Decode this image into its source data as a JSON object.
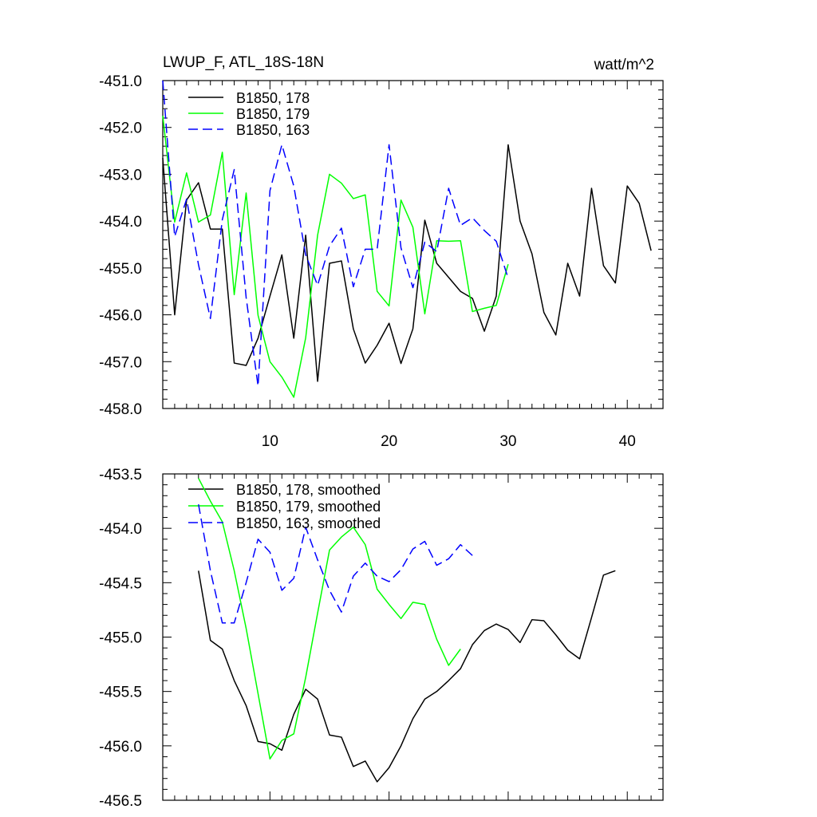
{
  "figure": {
    "title_left": "LWUP_F, ATL_18S-18N",
    "title_right": "watt/m^2"
  },
  "chart_data": [
    {
      "type": "line",
      "panel": "top",
      "x_axis": {
        "range": [
          1,
          43
        ],
        "major_ticks": [
          10,
          20,
          30,
          40
        ],
        "minor_step": 1
      },
      "y_axis": {
        "range": [
          -458.0,
          -451.0
        ],
        "major_ticks": [
          -451.0,
          -452.0,
          -453.0,
          -454.0,
          -455.0,
          -456.0,
          -457.0,
          -458.0
        ],
        "minor_step": 0.2,
        "tick_format": 1
      },
      "legend_position": "top-left",
      "series": [
        {
          "name": "B1850, 178",
          "color": "#000000",
          "dashed": false,
          "x_start": 1,
          "values": [
            -452.65,
            -456.0,
            -453.55,
            -453.18,
            -454.17,
            -454.17,
            -457.03,
            -457.08,
            -456.5,
            -455.6,
            -454.72,
            -456.5,
            -454.3,
            -457.42,
            -454.9,
            -454.85,
            -456.3,
            -457.03,
            -456.65,
            -456.18,
            -457.04,
            -456.3,
            -453.98,
            -454.9,
            -455.2,
            -455.5,
            -455.65,
            -456.35,
            -455.6,
            -452.37,
            -454.0,
            -454.7,
            -455.95,
            -456.43,
            -454.9,
            -455.6,
            -453.3,
            -454.95,
            -455.32,
            -453.25,
            -453.62,
            -454.63
          ]
        },
        {
          "name": "B1850, 179",
          "color": "#00ff00",
          "dashed": false,
          "x_start": 1,
          "values": [
            -451.75,
            -454.02,
            -452.97,
            -454.02,
            -453.87,
            -452.53,
            -455.57,
            -453.4,
            -456.01,
            -457.0,
            -457.33,
            -457.76,
            -456.49,
            -454.3,
            -453.0,
            -453.19,
            -453.52,
            -453.44,
            -455.5,
            -455.81,
            -453.55,
            -454.13,
            -455.98,
            -454.42,
            -454.43,
            -454.42,
            -455.93,
            -455.86,
            -455.8,
            -454.92
          ]
        },
        {
          "name": "B1850, 163",
          "color": "#0000ff",
          "dashed": true,
          "x_start": 1,
          "values": [
            -451.0,
            -454.33,
            -453.53,
            -454.93,
            -456.08,
            -453.97,
            -452.9,
            -455.63,
            -457.52,
            -453.35,
            -452.37,
            -453.25,
            -454.72,
            -455.37,
            -454.53,
            -454.15,
            -455.4,
            -454.6,
            -454.6,
            -452.37,
            -454.57,
            -455.42,
            -454.45,
            -454.65,
            -453.3,
            -454.09,
            -453.93,
            -454.2,
            -454.43,
            -455.22
          ]
        }
      ]
    },
    {
      "type": "line",
      "panel": "bottom",
      "x_axis": {
        "range": [
          1,
          43
        ],
        "major_ticks": [
          10,
          20,
          30,
          40
        ],
        "minor_step": 1
      },
      "y_axis": {
        "range": [
          -456.5,
          -453.5
        ],
        "major_ticks": [
          -453.5,
          -454.0,
          -454.5,
          -455.0,
          -455.5,
          -456.0,
          -456.5
        ],
        "minor_step": 0.1,
        "tick_format": 1
      },
      "legend_position": "top-left",
      "series": [
        {
          "name": "B1850, 178, smoothed",
          "color": "#000000",
          "dashed": false,
          "x_start": 4,
          "values": [
            -454.39,
            -455.03,
            -455.11,
            -455.4,
            -455.63,
            -455.96,
            -455.98,
            -456.04,
            -455.71,
            -455.48,
            -455.57,
            -455.9,
            -455.92,
            -456.19,
            -456.14,
            -456.33,
            -456.2,
            -456.0,
            -455.75,
            -455.57,
            -455.5,
            -455.4,
            -455.29,
            -455.07,
            -454.94,
            -454.88,
            -454.93,
            -455.05,
            -454.84,
            -454.85,
            -454.98,
            -455.12,
            -455.2,
            -454.82,
            -454.43,
            -454.39
          ]
        },
        {
          "name": "B1850, 179, smoothed",
          "color": "#00ff00",
          "dashed": false,
          "x_start": 4,
          "values": [
            -453.54,
            -453.75,
            -453.94,
            -454.39,
            -454.92,
            -455.52,
            -456.12,
            -455.95,
            -455.89,
            -455.37,
            -454.78,
            -454.2,
            -454.08,
            -453.99,
            -454.15,
            -454.56,
            -454.7,
            -454.83,
            -454.68,
            -454.7,
            -455.02,
            -455.26,
            -455.11
          ]
        },
        {
          "name": "B1850, 163, smoothed",
          "color": "#0000ff",
          "dashed": true,
          "x_start": 4,
          "values": [
            -453.78,
            -454.39,
            -454.87,
            -454.87,
            -454.5,
            -454.1,
            -454.22,
            -454.57,
            -454.46,
            -453.99,
            -454.29,
            -454.57,
            -454.77,
            -454.44,
            -454.32,
            -454.44,
            -454.49,
            -454.38,
            -454.19,
            -454.12,
            -454.34,
            -454.28,
            -454.15,
            -454.25
          ]
        }
      ]
    }
  ]
}
